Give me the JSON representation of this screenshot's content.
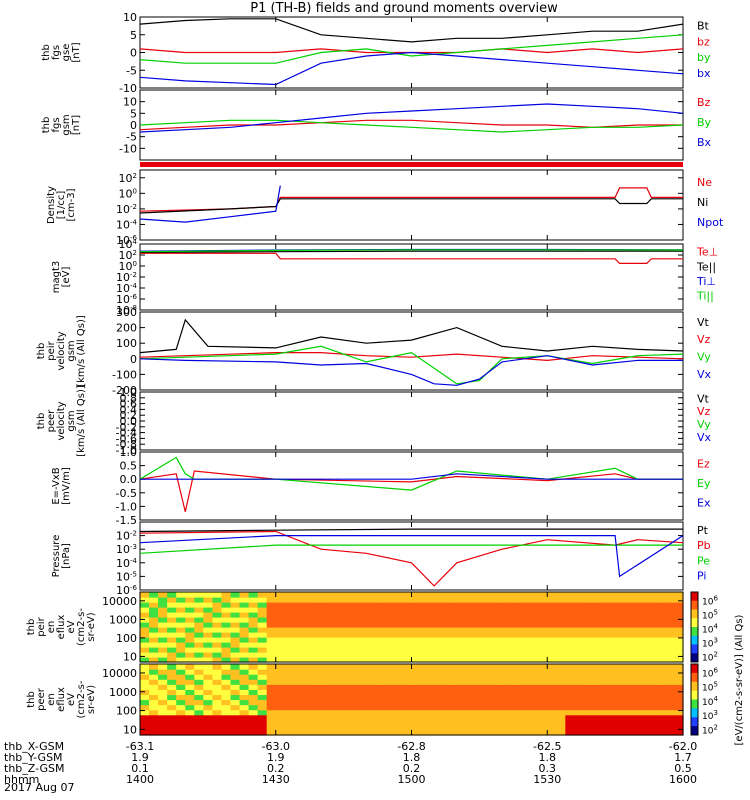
{
  "title": "P1 (TH-B) fields and ground moments overview",
  "date": "2017 Aug 07",
  "orbit_labels": [
    "thb_X-GSM",
    "thb_Y-GSM",
    "thb_Z-GSM",
    "hhmm"
  ],
  "orbit_ticks": [
    {
      "hhmm": "1400",
      "x": "-63.1",
      "y": "1.9",
      "z": "0.1"
    },
    {
      "hhmm": "1430",
      "x": "-63.0",
      "y": "1.9",
      "z": "0.2"
    },
    {
      "hhmm": "1500",
      "x": "-62.8",
      "y": "1.8",
      "z": "0.2"
    },
    {
      "hhmm": "1530",
      "x": "-62.5",
      "y": "1.8",
      "z": "0.3"
    },
    {
      "hhmm": "1600",
      "x": "-62.0",
      "y": "1.7",
      "z": "0.5"
    }
  ],
  "colors": {
    "black": "#000000",
    "red": "#e8000b",
    "green": "#00d000",
    "blue": "#0000e0"
  },
  "colorbar_label": "[eV/(cm2-s-sr-eV)] (All Qs)",
  "colorbar_ticks": [
    "10^6",
    "10^5",
    "10^4",
    "10^3",
    "10^2"
  ],
  "chart_data": [
    {
      "type": "line",
      "id": "fgs_gse",
      "ylabel": [
        "thb",
        "fgs",
        "gse",
        "[nT]"
      ],
      "ylim": [
        -10,
        10
      ],
      "yticks": [
        "10",
        "5",
        "0",
        "-5",
        "-10"
      ],
      "series": [
        {
          "name": "Bt",
          "color": "black",
          "t": [
            1400,
            1410,
            1420,
            1430,
            1440,
            1450,
            1500,
            1510,
            1520,
            1530,
            1540,
            1550,
            1600
          ],
          "values": [
            8,
            9,
            9.5,
            9.5,
            5,
            4,
            3,
            4,
            4,
            5,
            6,
            6,
            8
          ]
        },
        {
          "name": "bz",
          "color": "red",
          "t": [
            1400,
            1410,
            1420,
            1430,
            1440,
            1450,
            1500,
            1510,
            1520,
            1530,
            1540,
            1550,
            1600
          ],
          "values": [
            1,
            0,
            0,
            0,
            1,
            0,
            0,
            0,
            1,
            0,
            1,
            0,
            1
          ]
        },
        {
          "name": "by",
          "color": "green",
          "t": [
            1400,
            1410,
            1420,
            1430,
            1440,
            1450,
            1500,
            1510,
            1520,
            1530,
            1540,
            1550,
            1600
          ],
          "values": [
            -2,
            -3,
            -3,
            -3,
            0,
            1,
            -1,
            0,
            1,
            2,
            3,
            4,
            5
          ]
        },
        {
          "name": "bx",
          "color": "blue",
          "t": [
            1400,
            1410,
            1420,
            1430,
            1440,
            1450,
            1500,
            1510,
            1520,
            1530,
            1540,
            1550,
            1600
          ],
          "values": [
            -7,
            -8,
            -8.5,
            -9,
            -3,
            -1,
            0,
            -1,
            -2,
            -3,
            -4,
            -5,
            -6
          ]
        }
      ]
    },
    {
      "type": "line",
      "id": "fgs_gsm",
      "ylabel": [
        "thb",
        "fgs",
        "gsm",
        "[nT]"
      ],
      "ylim": [
        -15,
        15
      ],
      "yticks": [
        "10",
        "5",
        "0",
        "-5",
        "-10"
      ],
      "series": [
        {
          "name": "Bz",
          "color": "red",
          "t": [
            1400,
            1410,
            1420,
            1430,
            1440,
            1450,
            1500,
            1510,
            1520,
            1530,
            1540,
            1550,
            1600
          ],
          "values": [
            -2,
            -1,
            0,
            0,
            1,
            2,
            2,
            1,
            0,
            0,
            -1,
            0,
            0
          ]
        },
        {
          "name": "By",
          "color": "green",
          "t": [
            1400,
            1410,
            1420,
            1430,
            1440,
            1450,
            1500,
            1510,
            1520,
            1530,
            1540,
            1550,
            1600
          ],
          "values": [
            0,
            1,
            2,
            2,
            1,
            0,
            -1,
            -2,
            -3,
            -2,
            -1,
            -1,
            0
          ]
        },
        {
          "name": "Bx",
          "color": "blue",
          "t": [
            1400,
            1410,
            1420,
            1430,
            1440,
            1450,
            1500,
            1510,
            1520,
            1530,
            1540,
            1550,
            1600
          ],
          "values": [
            -3,
            -2,
            -1,
            1,
            3,
            5,
            6,
            7,
            8,
            9,
            8,
            7,
            5
          ]
        }
      ]
    },
    {
      "type": "line",
      "id": "density",
      "ylabel": [
        "Density",
        "[1/cc]",
        "[cm-3]"
      ],
      "yscale": "log",
      "ylim": [
        1e-06,
        1000.0
      ],
      "yticks": [
        "10^2",
        "10^0",
        "10^-2",
        "10^-4",
        "10^-6"
      ],
      "series": [
        {
          "name": "Ne",
          "color": "red",
          "t": [
            1400,
            1420,
            1430,
            1431,
            1500,
            1545,
            1546,
            1552,
            1553,
            1600
          ],
          "values": [
            0.005,
            0.01,
            0.02,
            0.3,
            0.3,
            0.3,
            5,
            5,
            0.3,
            0.3
          ]
        },
        {
          "name": "Ni",
          "color": "black",
          "t": [
            1400,
            1420,
            1430,
            1431,
            1500,
            1545,
            1546,
            1552,
            1553,
            1600
          ],
          "values": [
            0.003,
            0.01,
            0.02,
            0.2,
            0.2,
            0.2,
            0.05,
            0.05,
            0.2,
            0.2
          ]
        },
        {
          "name": "Npot",
          "color": "blue",
          "t": [
            1400,
            1410,
            1420,
            1430,
            1431
          ],
          "values": [
            0.0005,
            0.0002,
            0.001,
            0.005,
            10
          ]
        }
      ]
    },
    {
      "type": "line",
      "id": "temperature",
      "ylabel": [
        "magt3",
        "[eV]"
      ],
      "yscale": "log",
      "ylim": [
        1e-08,
        10000.0
      ],
      "yticks": [
        "10^4",
        "10^2",
        "10^0",
        "10^-2",
        "10^-4",
        "10^-6",
        "10^-8"
      ],
      "series": [
        {
          "name": "Te⊥",
          "color": "red",
          "t": [
            1400,
            1430,
            1431,
            1500,
            1545,
            1546,
            1552,
            1553,
            1600
          ],
          "values": [
            200,
            200,
            20,
            20,
            20,
            3,
            3,
            20,
            20
          ]
        },
        {
          "name": "Te||",
          "color": "black",
          "t": [
            1400,
            1430,
            1500,
            1530,
            1600
          ],
          "values": [
            300,
            400,
            500,
            500,
            500
          ]
        },
        {
          "name": "Ti⊥",
          "color": "blue",
          "t": [
            1400,
            1430,
            1500,
            1530,
            1600
          ],
          "values": [
            500,
            800,
            1000,
            1000,
            900
          ]
        },
        {
          "name": "Ti||",
          "color": "green",
          "t": [
            1400,
            1430,
            1500,
            1530,
            1600
          ],
          "values": [
            400,
            700,
            900,
            900,
            800
          ]
        }
      ]
    },
    {
      "type": "line",
      "id": "peir_velocity",
      "ylabel": [
        "thb",
        "peir",
        "velocity",
        "gsm",
        "[km/s (All Qs)]"
      ],
      "ylim": [
        -200,
        300
      ],
      "yticks": [
        "300",
        "200",
        "100",
        "0",
        "-100",
        "-200"
      ],
      "series": [
        {
          "name": "Vt",
          "color": "black",
          "t": [
            1400,
            1408,
            1410,
            1415,
            1430,
            1440,
            1450,
            1500,
            1510,
            1520,
            1530,
            1540,
            1550,
            1600
          ],
          "values": [
            40,
            60,
            250,
            80,
            70,
            140,
            100,
            120,
            200,
            80,
            50,
            80,
            60,
            50
          ]
        },
        {
          "name": "Vz",
          "color": "red",
          "t": [
            1400,
            1410,
            1430,
            1440,
            1450,
            1500,
            1510,
            1520,
            1530,
            1540,
            1550,
            1600
          ],
          "values": [
            10,
            20,
            40,
            40,
            20,
            10,
            30,
            10,
            -10,
            20,
            10,
            0
          ]
        },
        {
          "name": "Vy",
          "color": "green",
          "t": [
            1400,
            1410,
            1430,
            1440,
            1450,
            1500,
            1510,
            1515,
            1520,
            1530,
            1540,
            1550,
            1600
          ],
          "values": [
            0,
            10,
            30,
            80,
            -20,
            40,
            -160,
            -140,
            0,
            20,
            -30,
            20,
            30
          ]
        },
        {
          "name": "Vx",
          "color": "blue",
          "t": [
            1400,
            1410,
            1430,
            1440,
            1450,
            1500,
            1505,
            1510,
            1515,
            1520,
            1530,
            1540,
            1550,
            1600
          ],
          "values": [
            0,
            -10,
            -20,
            -40,
            -30,
            -100,
            -160,
            -170,
            -130,
            -20,
            20,
            -40,
            -10,
            -10
          ]
        }
      ]
    },
    {
      "type": "line",
      "id": "peer_velocity",
      "ylabel": [
        "thb",
        "peer",
        "velocity",
        "gsm",
        "[km/s (All Qs)]"
      ],
      "ylim": [
        -1,
        1
      ],
      "yticks": [
        "1.0",
        "0.8",
        "0.6",
        "0.4",
        "0.2",
        "0.0",
        "-0.2",
        "-0.4",
        "-0.6",
        "-0.8",
        "-1.0"
      ],
      "series": [
        {
          "name": "Vt",
          "color": "black",
          "t": [],
          "values": []
        },
        {
          "name": "Vz",
          "color": "red",
          "t": [],
          "values": []
        },
        {
          "name": "Vy",
          "color": "green",
          "t": [],
          "values": []
        },
        {
          "name": "Vx",
          "color": "blue",
          "t": [],
          "values": []
        }
      ]
    },
    {
      "type": "line",
      "id": "efield",
      "ylabel": [
        "E=-VxB",
        "[mV/m]"
      ],
      "ylim": [
        -1.5,
        1
      ],
      "yticks": [
        "1.0",
        "0.5",
        "0.0",
        "-0.5",
        "-1.0",
        "-1.5"
      ],
      "series": [
        {
          "name": "Ez",
          "color": "red",
          "t": [
            1400,
            1408,
            1410,
            1412,
            1430,
            1500,
            1510,
            1530,
            1545,
            1550,
            1600
          ],
          "values": [
            0,
            0.2,
            -1.2,
            0.3,
            0,
            -0.1,
            0.1,
            -0.05,
            0.2,
            0,
            0
          ]
        },
        {
          "name": "Ey",
          "color": "green",
          "t": [
            1400,
            1408,
            1410,
            1412,
            1430,
            1500,
            1510,
            1530,
            1545,
            1550,
            1600
          ],
          "values": [
            0,
            0.8,
            0.2,
            0,
            0,
            -0.4,
            0.3,
            0,
            0.4,
            0,
            0
          ]
        },
        {
          "name": "Ex",
          "color": "blue",
          "t": [
            1400,
            1430,
            1500,
            1510,
            1530,
            1600
          ],
          "values": [
            0,
            0,
            0,
            0.2,
            0,
            0
          ]
        }
      ]
    },
    {
      "type": "line",
      "id": "pressure",
      "ylabel": [
        "Pressure",
        "[nPa]"
      ],
      "yscale": "log",
      "ylim": [
        1e-06,
        0.1
      ],
      "yticks": [
        "10^-2",
        "10^-3",
        "10^-4",
        "10^-5",
        "10^-6"
      ],
      "series": [
        {
          "name": "Pt",
          "color": "black",
          "t": [
            1400,
            1430,
            1500,
            1530,
            1600
          ],
          "values": [
            0.02,
            0.025,
            0.03,
            0.03,
            0.03
          ]
        },
        {
          "name": "Pb",
          "color": "red",
          "t": [
            1400,
            1430,
            1440,
            1450,
            1500,
            1505,
            1510,
            1520,
            1530,
            1545,
            1550,
            1600
          ],
          "values": [
            0.015,
            0.02,
            0.001,
            0.0005,
            0.0001,
            2e-06,
            0.0001,
            0.001,
            0.005,
            0.002,
            0.005,
            0.003
          ]
        },
        {
          "name": "Pe",
          "color": "green",
          "t": [
            1400,
            1430,
            1500,
            1530,
            1600
          ],
          "values": [
            0.0005,
            0.002,
            0.002,
            0.002,
            0.002
          ]
        },
        {
          "name": "Pi",
          "color": "blue",
          "t": [
            1400,
            1430,
            1500,
            1530,
            1545,
            1546,
            1600
          ],
          "values": [
            0.003,
            0.01,
            0.01,
            0.01,
            0.01,
            1e-05,
            0.01
          ]
        }
      ]
    },
    {
      "type": "heatmap",
      "id": "peir_eflux",
      "ylabel": [
        "thb",
        "peir",
        "en",
        "eflux",
        "eV",
        "(cm2-s-",
        "sr-eV)"
      ],
      "yscale": "log",
      "ylim": [
        5,
        30000
      ],
      "yticks": [
        "10000",
        "1000",
        "100",
        "10"
      ]
    },
    {
      "type": "heatmap",
      "id": "peer_eflux",
      "ylabel": [
        "thb",
        "peer",
        "en",
        "eflux",
        "eV",
        "(cm2-s-",
        "sr-eV)"
      ],
      "yscale": "log",
      "ylim": [
        5,
        30000
      ],
      "yticks": [
        "10000",
        "1000",
        "100",
        "10"
      ]
    }
  ]
}
